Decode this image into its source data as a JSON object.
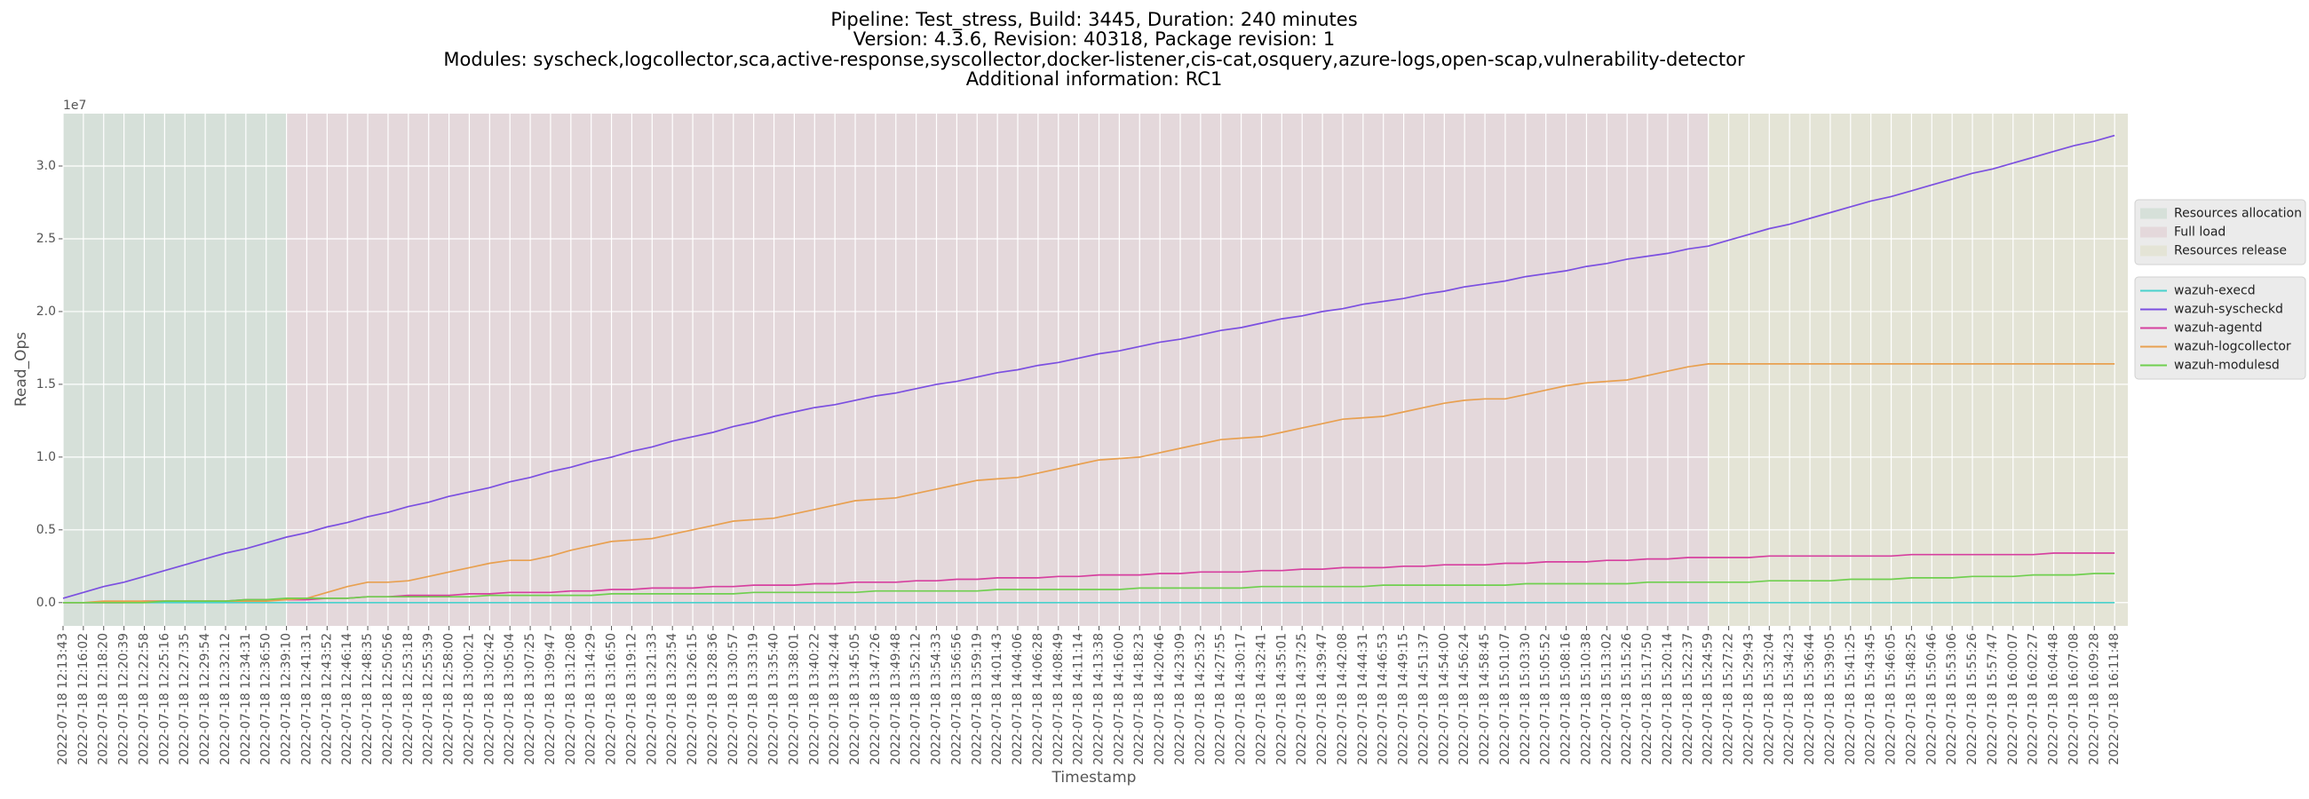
{
  "chart_data": {
    "type": "line",
    "title": [
      "Pipeline: Test_stress, Build: 3445, Duration: 240 minutes",
      "Version: 4.3.6, Revision: 40318, Package revision: 1",
      "Modules: syscheck,logcollector,sca,active-response,syscollector,docker-listener,cis-cat,osquery,azure-logs,open-scap,vulnerability-detector",
      "Additional information: RC1"
    ],
    "x_label": "Timestamp",
    "y_label": "Read_Ops",
    "y_offset_label": "1e7",
    "x": [
      "2022-07-18 12:13:43",
      "2022-07-18 12:16:02",
      "2022-07-18 12:18:20",
      "2022-07-18 12:20:39",
      "2022-07-18 12:22:58",
      "2022-07-18 12:25:16",
      "2022-07-18 12:27:35",
      "2022-07-18 12:29:54",
      "2022-07-18 12:32:12",
      "2022-07-18 12:34:31",
      "2022-07-18 12:36:50",
      "2022-07-18 12:39:10",
      "2022-07-18 12:41:31",
      "2022-07-18 12:43:52",
      "2022-07-18 12:46:14",
      "2022-07-18 12:48:35",
      "2022-07-18 12:50:56",
      "2022-07-18 12:53:18",
      "2022-07-18 12:55:39",
      "2022-07-18 12:58:00",
      "2022-07-18 13:00:21",
      "2022-07-18 13:02:42",
      "2022-07-18 13:05:04",
      "2022-07-18 13:07:25",
      "2022-07-18 13:09:47",
      "2022-07-18 13:12:08",
      "2022-07-18 13:14:29",
      "2022-07-18 13:16:50",
      "2022-07-18 13:19:12",
      "2022-07-18 13:21:33",
      "2022-07-18 13:23:54",
      "2022-07-18 13:26:15",
      "2022-07-18 13:28:36",
      "2022-07-18 13:30:57",
      "2022-07-18 13:33:19",
      "2022-07-18 13:35:40",
      "2022-07-18 13:38:01",
      "2022-07-18 13:40:22",
      "2022-07-18 13:42:44",
      "2022-07-18 13:45:05",
      "2022-07-18 13:47:26",
      "2022-07-18 13:49:48",
      "2022-07-18 13:52:12",
      "2022-07-18 13:54:33",
      "2022-07-18 13:56:56",
      "2022-07-18 13:59:19",
      "2022-07-18 14:01:43",
      "2022-07-18 14:04:06",
      "2022-07-18 14:06:28",
      "2022-07-18 14:08:49",
      "2022-07-18 14:11:14",
      "2022-07-18 14:13:38",
      "2022-07-18 14:16:00",
      "2022-07-18 14:18:23",
      "2022-07-18 14:20:46",
      "2022-07-18 14:23:09",
      "2022-07-18 14:25:32",
      "2022-07-18 14:27:55",
      "2022-07-18 14:30:17",
      "2022-07-18 14:32:41",
      "2022-07-18 14:35:01",
      "2022-07-18 14:37:25",
      "2022-07-18 14:39:47",
      "2022-07-18 14:42:08",
      "2022-07-18 14:44:31",
      "2022-07-18 14:46:53",
      "2022-07-18 14:49:15",
      "2022-07-18 14:51:37",
      "2022-07-18 14:54:00",
      "2022-07-18 14:56:24",
      "2022-07-18 14:58:45",
      "2022-07-18 15:01:07",
      "2022-07-18 15:03:30",
      "2022-07-18 15:05:52",
      "2022-07-18 15:08:16",
      "2022-07-18 15:10:38",
      "2022-07-18 15:13:02",
      "2022-07-18 15:15:26",
      "2022-07-18 15:17:50",
      "2022-07-18 15:20:14",
      "2022-07-18 15:22:37",
      "2022-07-18 15:24:59",
      "2022-07-18 15:27:22",
      "2022-07-18 15:29:43",
      "2022-07-18 15:32:04",
      "2022-07-18 15:34:23",
      "2022-07-18 15:36:44",
      "2022-07-18 15:39:05",
      "2022-07-18 15:41:25",
      "2022-07-18 15:43:45",
      "2022-07-18 15:46:05",
      "2022-07-18 15:48:25",
      "2022-07-18 15:50:46",
      "2022-07-18 15:53:06",
      "2022-07-18 15:55:26",
      "2022-07-18 15:57:47",
      "2022-07-18 16:00:07",
      "2022-07-18 16:02:27",
      "2022-07-18 16:04:48",
      "2022-07-18 16:07:08",
      "2022-07-18 16:09:28",
      "2022-07-18 16:11:48"
    ],
    "regions": [
      {
        "name": "Resources allocation",
        "color": "#d6e0d9",
        "start": "2022-07-18 12:13:43"
      },
      {
        "name": "Full load",
        "color": "#e4d8db",
        "start": "2022-07-18 12:39:10"
      },
      {
        "name": "Resources release",
        "color": "#e4e4d6",
        "start": "2022-07-18 15:24:59"
      }
    ],
    "series": [
      {
        "name": "wazuh-execd",
        "color": "#48d1cc",
        "values": [
          0,
          0,
          0,
          0,
          0,
          0,
          0,
          0,
          0,
          0,
          0,
          0,
          0,
          0,
          0,
          0,
          0,
          0,
          0,
          0,
          0,
          0,
          0,
          0,
          0,
          0,
          0,
          0,
          0,
          0,
          0,
          0,
          0,
          0,
          0,
          0,
          0,
          0,
          0,
          0,
          0,
          0,
          0,
          0,
          0,
          0,
          0,
          0,
          0,
          0,
          0,
          0,
          0,
          0,
          0,
          0,
          0,
          0,
          0,
          0,
          0,
          0,
          0,
          0,
          0,
          0,
          0,
          0,
          0,
          0,
          0,
          0,
          0,
          0,
          0,
          0,
          0,
          0,
          0,
          0,
          0,
          0,
          0,
          0,
          0,
          0,
          0,
          0,
          0,
          0,
          0,
          0,
          0,
          0,
          0,
          0,
          0,
          0,
          0,
          0,
          0,
          0
        ]
      },
      {
        "name": "wazuh-syscheckd",
        "color": "#7b4fe0",
        "values": [
          0.03,
          0.07,
          0.11,
          0.14,
          0.18,
          0.22,
          0.26,
          0.3,
          0.34,
          0.37,
          0.41,
          0.45,
          0.48,
          0.52,
          0.55,
          0.59,
          0.62,
          0.66,
          0.69,
          0.73,
          0.76,
          0.79,
          0.83,
          0.86,
          0.9,
          0.93,
          0.97,
          1.0,
          1.04,
          1.07,
          1.11,
          1.14,
          1.17,
          1.21,
          1.24,
          1.28,
          1.31,
          1.34,
          1.36,
          1.39,
          1.42,
          1.44,
          1.47,
          1.5,
          1.52,
          1.55,
          1.58,
          1.6,
          1.63,
          1.65,
          1.68,
          1.71,
          1.73,
          1.76,
          1.79,
          1.81,
          1.84,
          1.87,
          1.89,
          1.92,
          1.95,
          1.97,
          2.0,
          2.02,
          2.05,
          2.07,
          2.09,
          2.12,
          2.14,
          2.17,
          2.19,
          2.21,
          2.24,
          2.26,
          2.28,
          2.31,
          2.33,
          2.36,
          2.38,
          2.4,
          2.43,
          2.45,
          2.49,
          2.53,
          2.57,
          2.6,
          2.64,
          2.68,
          2.72,
          2.76,
          2.79,
          2.83,
          2.87,
          2.91,
          2.95,
          2.98,
          3.02,
          3.06,
          3.1,
          3.14,
          3.17,
          3.21
        ]
      },
      {
        "name": "wazuh-agentd",
        "color": "#d6409f",
        "values": [
          0,
          0,
          0,
          0,
          0.01,
          0.01,
          0.01,
          0.01,
          0.01,
          0.02,
          0.02,
          0.02,
          0.02,
          0.03,
          0.03,
          0.04,
          0.04,
          0.05,
          0.05,
          0.05,
          0.06,
          0.06,
          0.07,
          0.07,
          0.07,
          0.08,
          0.08,
          0.09,
          0.09,
          0.1,
          0.1,
          0.1,
          0.11,
          0.11,
          0.12,
          0.12,
          0.12,
          0.13,
          0.13,
          0.14,
          0.14,
          0.14,
          0.15,
          0.15,
          0.16,
          0.16,
          0.17,
          0.17,
          0.17,
          0.18,
          0.18,
          0.19,
          0.19,
          0.19,
          0.2,
          0.2,
          0.21,
          0.21,
          0.21,
          0.22,
          0.22,
          0.23,
          0.23,
          0.24,
          0.24,
          0.24,
          0.25,
          0.25,
          0.26,
          0.26,
          0.26,
          0.27,
          0.27,
          0.28,
          0.28,
          0.28,
          0.29,
          0.29,
          0.3,
          0.3,
          0.31,
          0.31,
          0.31,
          0.31,
          0.32,
          0.32,
          0.32,
          0.32,
          0.32,
          0.32,
          0.32,
          0.33,
          0.33,
          0.33,
          0.33,
          0.33,
          0.33,
          0.33,
          0.34,
          0.34,
          0.34,
          0.34
        ]
      },
      {
        "name": "wazuh-logcollector",
        "color": "#e8a050",
        "values": [
          0,
          0,
          0.01,
          0.01,
          0.01,
          0.01,
          0.01,
          0.01,
          0.01,
          0.01,
          0.01,
          0.02,
          0.03,
          0.07,
          0.11,
          0.14,
          0.14,
          0.15,
          0.18,
          0.21,
          0.24,
          0.27,
          0.29,
          0.29,
          0.32,
          0.36,
          0.39,
          0.42,
          0.43,
          0.44,
          0.47,
          0.5,
          0.53,
          0.56,
          0.57,
          0.58,
          0.61,
          0.64,
          0.67,
          0.7,
          0.71,
          0.72,
          0.75,
          0.78,
          0.81,
          0.84,
          0.85,
          0.86,
          0.89,
          0.92,
          0.95,
          0.98,
          0.99,
          1.0,
          1.03,
          1.06,
          1.09,
          1.12,
          1.13,
          1.14,
          1.17,
          1.2,
          1.23,
          1.26,
          1.27,
          1.28,
          1.31,
          1.34,
          1.37,
          1.39,
          1.4,
          1.4,
          1.43,
          1.46,
          1.49,
          1.51,
          1.52,
          1.53,
          1.56,
          1.59,
          1.62,
          1.64,
          1.64,
          1.64,
          1.64,
          1.64,
          1.64,
          1.64,
          1.64,
          1.64,
          1.64,
          1.64,
          1.64,
          1.64,
          1.64,
          1.64,
          1.64,
          1.64,
          1.64,
          1.64,
          1.64,
          1.64
        ]
      },
      {
        "name": "wazuh-modulesd",
        "color": "#6fcf4f",
        "values": [
          0,
          0,
          0,
          0,
          0,
          0.01,
          0.01,
          0.01,
          0.01,
          0.02,
          0.02,
          0.03,
          0.03,
          0.03,
          0.03,
          0.04,
          0.04,
          0.04,
          0.04,
          0.04,
          0.04,
          0.05,
          0.05,
          0.05,
          0.05,
          0.05,
          0.05,
          0.06,
          0.06,
          0.06,
          0.06,
          0.06,
          0.06,
          0.06,
          0.07,
          0.07,
          0.07,
          0.07,
          0.07,
          0.07,
          0.08,
          0.08,
          0.08,
          0.08,
          0.08,
          0.08,
          0.09,
          0.09,
          0.09,
          0.09,
          0.09,
          0.09,
          0.09,
          0.1,
          0.1,
          0.1,
          0.1,
          0.1,
          0.1,
          0.11,
          0.11,
          0.11,
          0.11,
          0.11,
          0.11,
          0.12,
          0.12,
          0.12,
          0.12,
          0.12,
          0.12,
          0.12,
          0.13,
          0.13,
          0.13,
          0.13,
          0.13,
          0.13,
          0.14,
          0.14,
          0.14,
          0.14,
          0.14,
          0.14,
          0.15,
          0.15,
          0.15,
          0.15,
          0.16,
          0.16,
          0.16,
          0.17,
          0.17,
          0.17,
          0.18,
          0.18,
          0.18,
          0.19,
          0.19,
          0.19,
          0.2,
          0.2
        ]
      }
    ],
    "ylim": [
      -0.16,
      3.36
    ],
    "yticks": [
      {
        "value": 0,
        "label": "0.0"
      },
      0.5,
      {
        "value": 1,
        "label": "1.0"
      },
      1.5,
      {
        "value": 2,
        "label": "2.0"
      },
      2.5,
      {
        "value": 3,
        "label": "3.0"
      }
    ],
    "grid": true,
    "legend": "outside right"
  }
}
